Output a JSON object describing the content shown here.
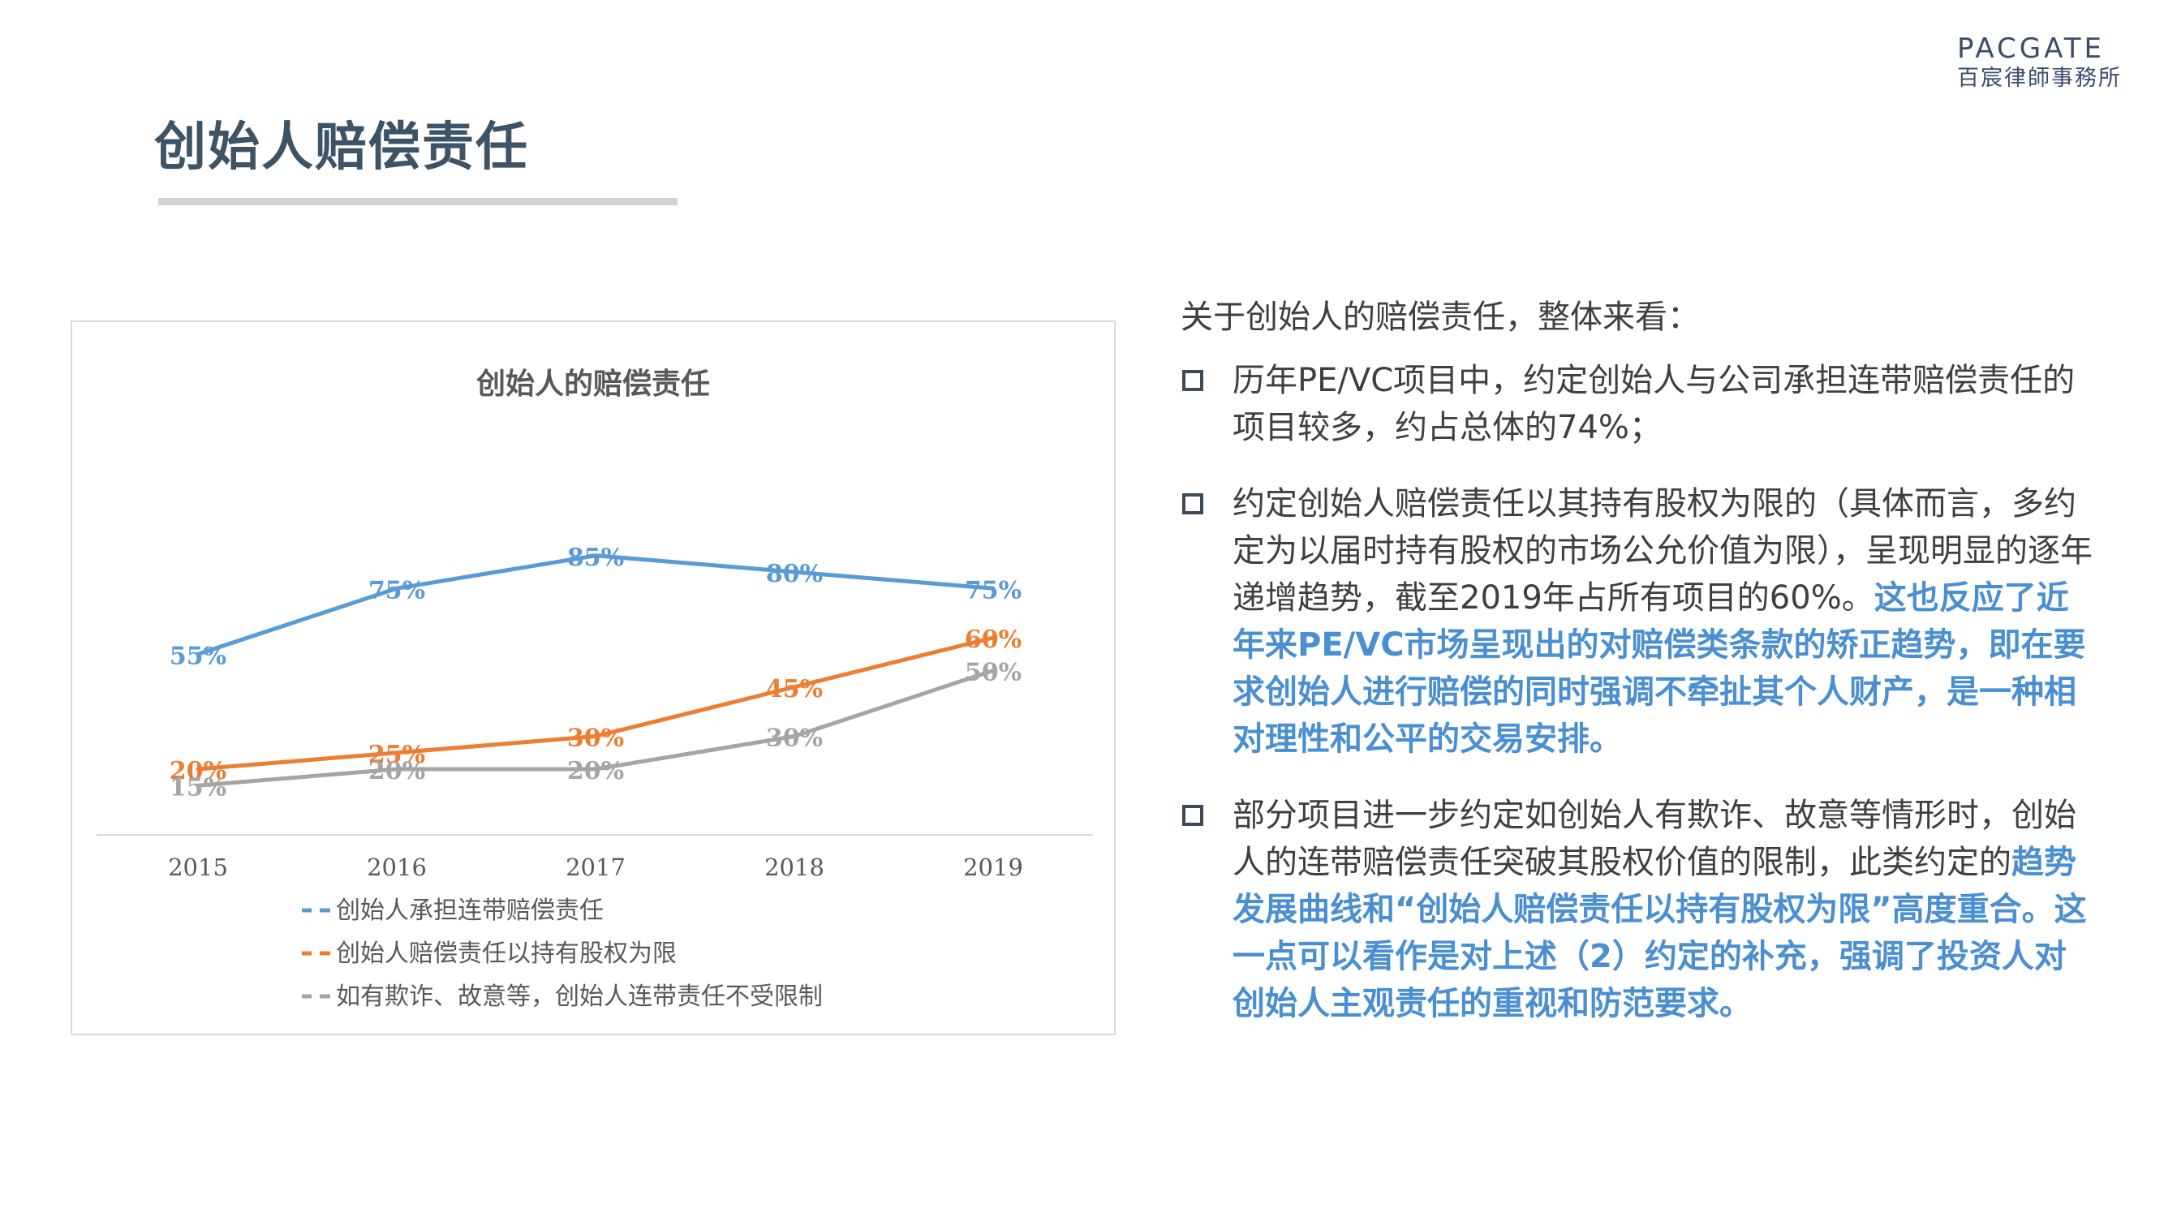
{
  "header": {
    "title": "创始人赔偿责任",
    "logo_name": "PACGATE",
    "logo_sub": "百宸律師事務所"
  },
  "colors": {
    "blue": "#5b9bd5",
    "orange": "#ed7d31",
    "gray": "#a5a5a5",
    "title": "#3d5366",
    "highlight": "#4a8fd1"
  },
  "chart_data": {
    "type": "line",
    "title": "创始人的赔偿责任",
    "categories": [
      "2015",
      "2016",
      "2017",
      "2018",
      "2019"
    ],
    "series": [
      {
        "name": "创始人承担连带赔偿责任",
        "values": [
          55,
          75,
          85,
          80,
          75
        ],
        "labels": [
          "55%",
          "75%",
          "85%",
          "80%",
          "75%"
        ],
        "color": "#5b9bd5"
      },
      {
        "name": "创始人赔偿责任以持有股权为限",
        "values": [
          20,
          25,
          30,
          45,
          60
        ],
        "labels": [
          "20%",
          "25%",
          "30%",
          "45%",
          "60%"
        ],
        "color": "#ed7d31"
      },
      {
        "name": "如有欺诈、故意等，创始人连带责任不受限制",
        "values": [
          15,
          20,
          20,
          30,
          50
        ],
        "labels": [
          "15%",
          "20%",
          "20%",
          "30%",
          "50%"
        ],
        "color": "#a5a5a5"
      }
    ],
    "ylim": [
      0,
      100
    ],
    "grid": false,
    "legend": "bottom"
  },
  "text": {
    "intro": "关于创始人的赔偿责任，整体来看：",
    "b1": "历年PE/VC项目中，约定创始人与公司承担连带赔偿责任的项目较多，约占总体的74%；",
    "b2_normal": "约定创始人赔偿责任以其持有股权为限的（具体而言，多约定为以届时持有股权的市场公允价值为限），呈现明显的逐年递增趋势，截至2019年占所有项目的60%。",
    "b2_hl": "这也反应了近年来PE/VC市场呈现出的对赔偿类条款的矫正趋势，即在要求创始人进行赔偿的同时强调不牵扯其个人财产，是一种相对理性和公平的交易安排。",
    "b3_normal": "部分项目进一步约定如创始人有欺诈、故意等情形时，创始人的连带赔偿责任突破其股权价值的限制，此类约定的",
    "b3_hl": "趋势发展曲线和“创始人赔偿责任以持有股权为限”高度重合。这一点可以看作是对上述（2）约定的补充，强调了投资人对创始人主观责任的重视和防范要求。"
  }
}
